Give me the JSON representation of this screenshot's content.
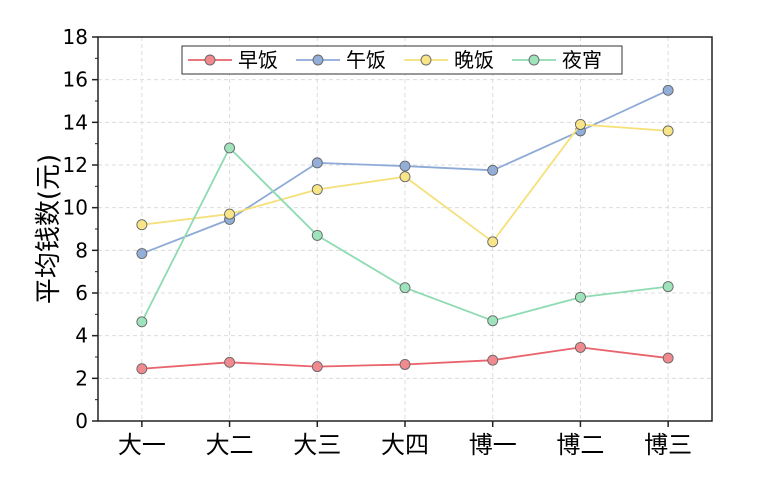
{
  "chart_data": {
    "type": "line",
    "title": "",
    "xlabel": "",
    "ylabel": "平均钱数(元)",
    "categories": [
      "大一",
      "大二",
      "大三",
      "大四",
      "博一",
      "博二",
      "博三"
    ],
    "ylim": [
      0,
      18
    ],
    "yticks": [
      0,
      2,
      4,
      6,
      8,
      10,
      12,
      14,
      16,
      18
    ],
    "grid": true,
    "legend_position": "top",
    "series": [
      {
        "name": "早饭",
        "color": "#e8636b",
        "fill": "#f08a8f",
        "values": [
          2.45,
          2.75,
          2.55,
          2.65,
          2.85,
          3.45,
          2.95
        ]
      },
      {
        "name": "午饭",
        "color": "#8eaad6",
        "fill": "#93aed8",
        "values": [
          7.85,
          9.45,
          12.1,
          11.95,
          11.75,
          13.6,
          15.5
        ]
      },
      {
        "name": "晚饭",
        "color": "#f5e07a",
        "fill": "#f7e588",
        "values": [
          9.2,
          9.7,
          10.85,
          11.45,
          8.4,
          13.9,
          13.6
        ]
      },
      {
        "name": "夜宵",
        "color": "#8edbb2",
        "fill": "#9fe3bd",
        "values": [
          4.65,
          12.8,
          8.7,
          6.25,
          4.7,
          5.8,
          6.3
        ]
      }
    ]
  }
}
